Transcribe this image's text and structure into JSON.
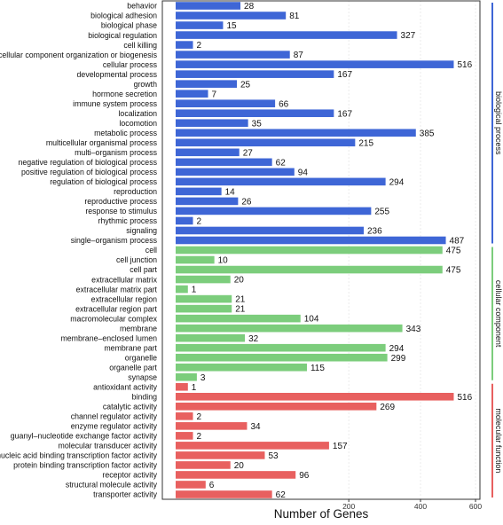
{
  "chart_data": {
    "type": "bar",
    "orientation": "horizontal",
    "xlabel": "Number of Genes",
    "x_scale": "sqrt",
    "xlim": [
      0,
      620
    ],
    "xticks": [
      200,
      400,
      600
    ],
    "grid": true,
    "label_values": true,
    "groups": [
      {
        "name": "biological process",
        "color": "#3e66d6",
        "categories": [
          "behavior",
          "biological adhesion",
          "biological phase",
          "biological regulation",
          "cell killing",
          "cellular component organization or biogenesis",
          "cellular process",
          "developmental process",
          "growth",
          "hormone secretion",
          "immune system process",
          "localization",
          "locomotion",
          "metabolic process",
          "multicellular organismal process",
          "multi–organism process",
          "negative regulation of biological process",
          "positive regulation of biological process",
          "regulation of biological process",
          "reproduction",
          "reproductive process",
          "response to stimulus",
          "rhythmic process",
          "signaling",
          "single–organism process"
        ],
        "values": [
          28,
          81,
          15,
          327,
          2,
          87,
          516,
          167,
          25,
          7,
          66,
          167,
          35,
          385,
          215,
          27,
          62,
          94,
          294,
          14,
          26,
          255,
          2,
          236,
          487
        ]
      },
      {
        "name": "cellular component",
        "color": "#7ccd7c",
        "categories": [
          "cell",
          "cell junction",
          "cell part",
          "extracellular matrix",
          "extracellular matrix part",
          "extracellular region",
          "extracellular region part",
          "macromolecular complex",
          "membrane",
          "membrane–enclosed lumen",
          "membrane part",
          "organelle",
          "organelle part",
          "synapse"
        ],
        "values": [
          475,
          10,
          475,
          20,
          1,
          21,
          21,
          104,
          343,
          32,
          294,
          299,
          115,
          3
        ]
      },
      {
        "name": "molecular function",
        "color": "#e8605f",
        "categories": [
          "antioxidant activity",
          "binding",
          "catalytic activity",
          "channel regulator activity",
          "enzyme regulator activity",
          "guanyl–nucleotide exchange factor activity",
          "molecular transducer activity",
          "nucleic acid binding transcription factor activity",
          "protein binding transcription factor activity",
          "receptor activity",
          "structural molecule activity",
          "transporter activity"
        ],
        "values": [
          1,
          516,
          269,
          2,
          34,
          2,
          157,
          53,
          20,
          96,
          6,
          62
        ]
      }
    ]
  }
}
